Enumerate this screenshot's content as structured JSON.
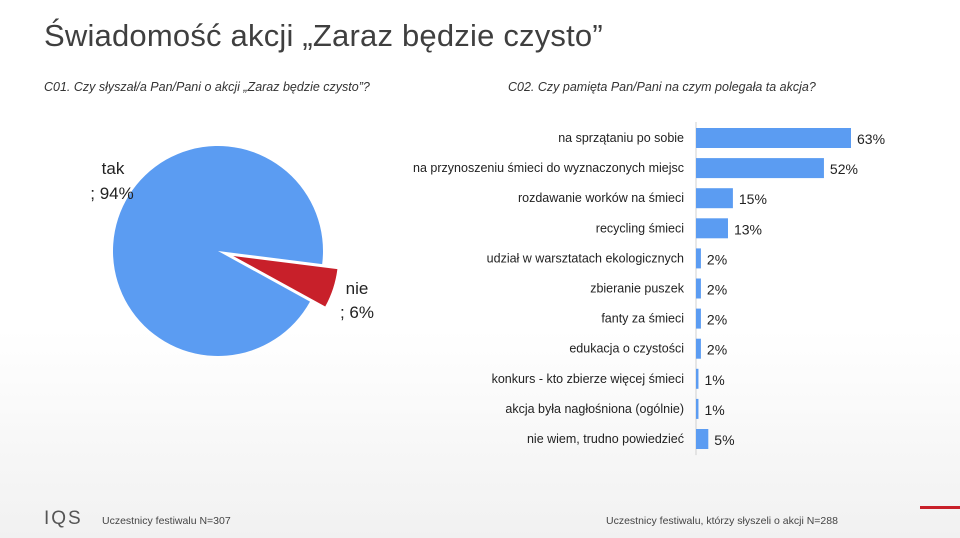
{
  "title": "Świadomość akcji „Zaraz będzie czysto”",
  "questions": {
    "q1": "C01. Czy słyszał/a Pan/Pani o akcji „Zaraz będzie czysto”?",
    "q2": "C02. Czy pamięta Pan/Pani na czym polegała ta akcja?"
  },
  "footer": {
    "left": "Uczestnicy festiwalu N=307",
    "right": "Uczestnicy festiwalu, którzy słyszeli o akcji N=288",
    "logo": "IQS"
  },
  "colors": {
    "blue": "#5b9cf2",
    "red": "#c8202a"
  },
  "chart_data": [
    {
      "type": "pie",
      "labels": [
        "tak",
        "nie"
      ],
      "value_labels": [
        "; 94%",
        "; 6%"
      ],
      "values": [
        94,
        6
      ],
      "colors": [
        "#5b9cf2",
        "#c8202a"
      ]
    },
    {
      "type": "bar",
      "orientation": "horizontal",
      "categories": [
        "na sprzątaniu po sobie",
        "na przynoszeniu śmieci do wyznaczonych miejsc",
        "rozdawanie worków na śmieci",
        "recycling śmieci",
        "udział w warsztatach ekologicznych",
        "zbieranie puszek",
        "fanty za śmieci",
        "edukacja o czystości",
        "konkurs - kto zbierze więcej śmieci",
        "akcja była nagłośniona (ogólnie)",
        "nie wiem, trudno powiedzieć"
      ],
      "values": [
        63,
        52,
        15,
        13,
        2,
        2,
        2,
        2,
        1,
        1,
        5
      ],
      "value_labels": [
        "63%",
        "52%",
        "15%",
        "13%",
        "2%",
        "2%",
        "2%",
        "2%",
        "1%",
        "1%",
        "5%"
      ],
      "color": "#5b9cf2"
    }
  ]
}
